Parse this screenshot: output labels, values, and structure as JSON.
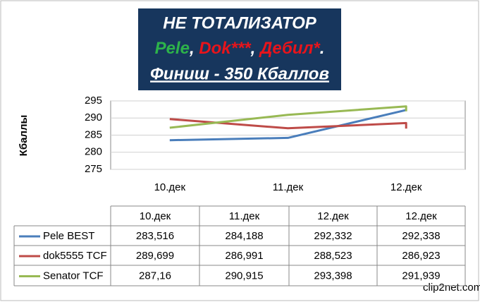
{
  "header": {
    "line1": "НЕ ТОТАЛИЗАТОР",
    "line2": [
      {
        "text": "Pele",
        "color": "#2db34a"
      },
      {
        "text": ", ",
        "color": "#ffffff"
      },
      {
        "text": "Dok***",
        "color": "#e8141b"
      },
      {
        "text": ", ",
        "color": "#ffffff"
      },
      {
        "text": "Дебил*",
        "color": "#e8141b"
      },
      {
        "text": ".",
        "color": "#ffffff"
      }
    ],
    "line3": "Финиш - 350 Кбаллов"
  },
  "chart_data": {
    "type": "line",
    "y_label": "Кбаллы",
    "categories": [
      "10.дек",
      "11.дек",
      "12.дек",
      "12.дек"
    ],
    "ylim": [
      275,
      295
    ],
    "yticks": [
      275,
      280,
      285,
      290,
      295
    ],
    "grid": true,
    "series": [
      {
        "name": "Pele BEST",
        "color": "#4a7ebb",
        "values": [
          283.516,
          284.188,
          292.332,
          292.338
        ],
        "value_labels": [
          "283,516",
          "284,188",
          "292,332",
          "292,338"
        ]
      },
      {
        "name": "dok5555 TCF",
        "color": "#be4b48",
        "values": [
          289.699,
          286.991,
          288.523,
          286.923
        ],
        "value_labels": [
          "289,699",
          "286,991",
          "288,523",
          "286,923"
        ]
      },
      {
        "name": "Senator TCF",
        "color": "#98b954",
        "values": [
          287.16,
          290.915,
          293.398,
          291.939
        ],
        "value_labels": [
          "287,16",
          "290,915",
          "293,398",
          "291,939"
        ]
      }
    ]
  },
  "watermark": "clip2net.com"
}
